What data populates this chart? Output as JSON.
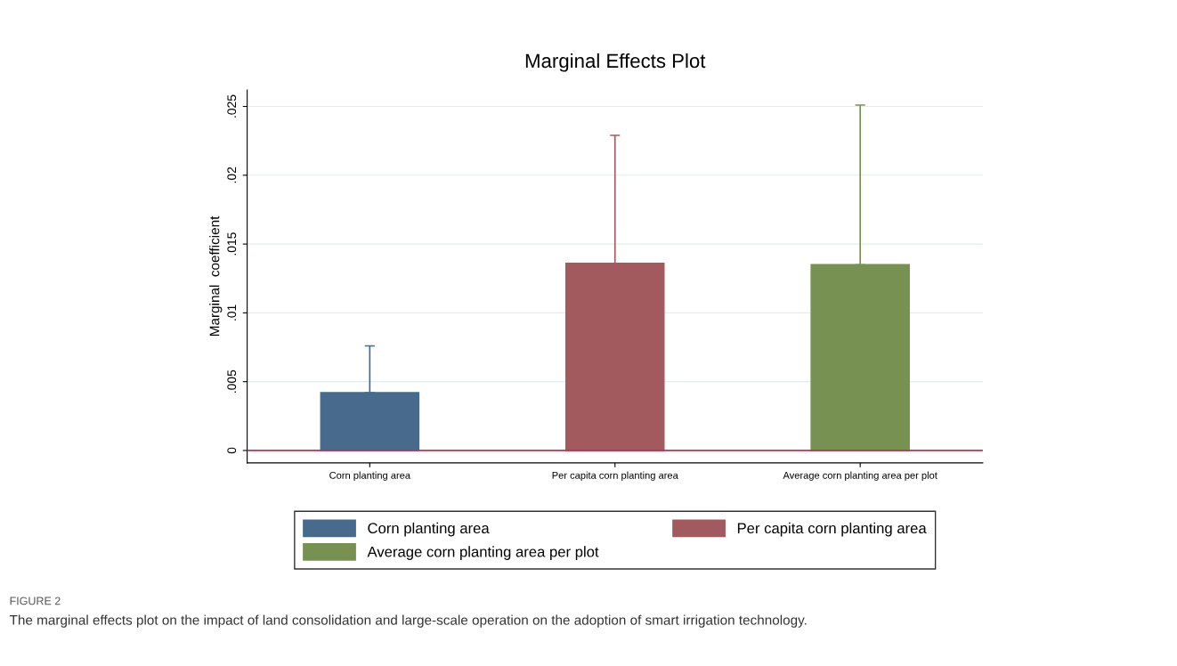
{
  "chart_data": {
    "type": "bar",
    "title": "Marginal Effects Plot",
    "ylabel": "Marginal  coefficient",
    "categories": [
      "Corn planting area",
      "Per capita corn planting area",
      "Average corn planting area per plot"
    ],
    "series": [
      {
        "name": "Corn planting area",
        "color": "#486a8c",
        "values": [
          0.0042,
          null,
          null
        ],
        "errors": [
          [
            0.0042,
            0.0076
          ],
          null,
          null
        ]
      },
      {
        "name": "Per capita corn planting area",
        "color": "#a35a5e",
        "values": [
          null,
          0.0136,
          null
        ],
        "errors": [
          null,
          [
            0.0136,
            0.0229
          ],
          null
        ]
      },
      {
        "name": "Average corn planting area per plot",
        "color": "#779153",
        "values": [
          null,
          null,
          0.0135
        ],
        "errors": [
          null,
          null,
          [
            0.0135,
            0.0251
          ]
        ]
      }
    ],
    "ylim": [
      -0.0009,
      0.0262
    ],
    "yticks": [
      {
        "value": 0,
        "label": "0"
      },
      {
        "value": 0.005,
        "label": ".005"
      },
      {
        "value": 0.01,
        "label": ".01"
      },
      {
        "value": 0.015,
        "label": ".015"
      },
      {
        "value": 0.02,
        "label": ".02"
      },
      {
        "value": 0.025,
        "label": ".025"
      }
    ],
    "ref_lines": [
      {
        "axis": "y",
        "value": 0,
        "color": "#c0305a"
      }
    ],
    "grid": "y",
    "legend": "bottom",
    "annotations": [
      "FIGURE 2",
      "The marginal effects plot on the impact of land consolidation and large-scale operation on the adoption of smart irrigation technology."
    ]
  }
}
